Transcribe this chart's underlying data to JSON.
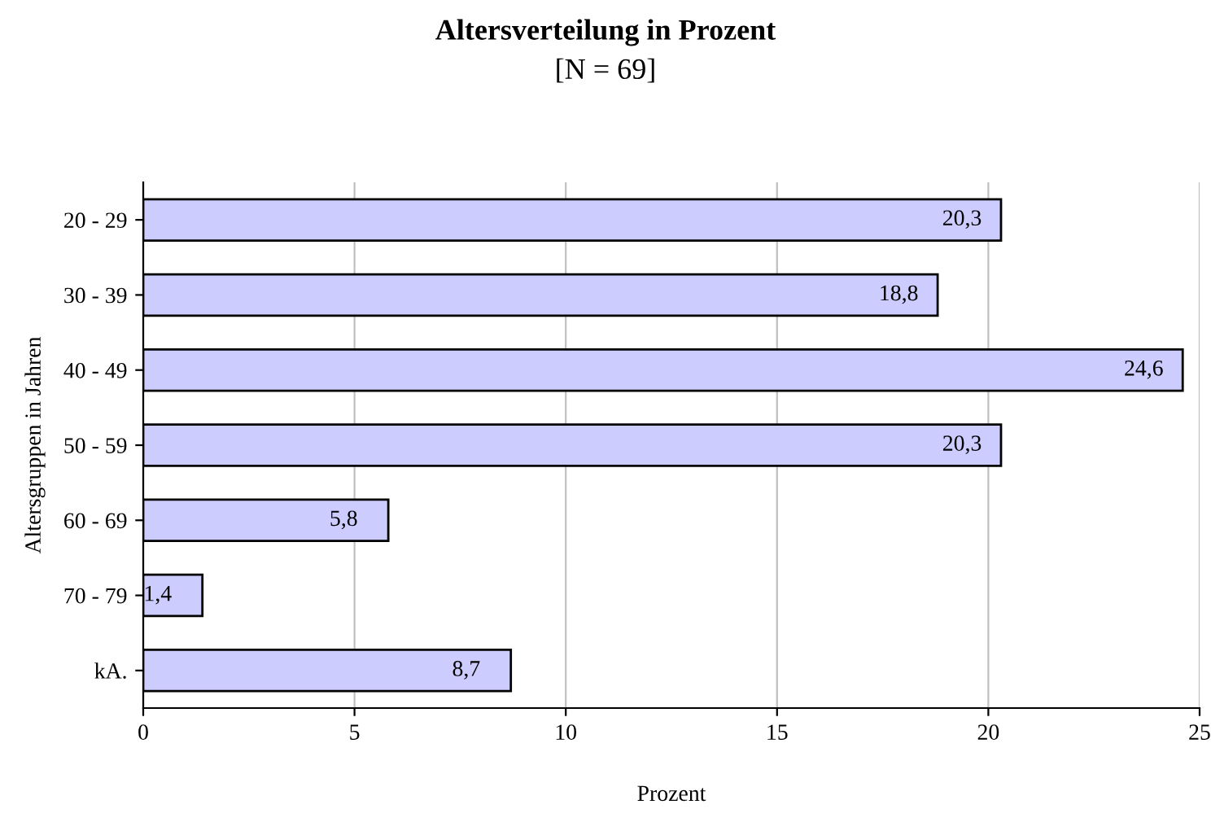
{
  "chart_data": {
    "type": "bar",
    "orientation": "horizontal",
    "title": "Altersverteilung in Prozent",
    "subtitle": "[N = 69]",
    "xlabel": "Prozent",
    "ylabel": "Altersgruppen in Jahren",
    "categories": [
      "20 - 29",
      "30 - 39",
      "40 - 49",
      "50 - 59",
      "60 - 69",
      "70 - 79",
      "kA."
    ],
    "values": [
      20.3,
      18.8,
      24.6,
      20.3,
      5.8,
      1.4,
      8.7
    ],
    "value_labels": [
      "20,3",
      "18,8",
      "24,6",
      "20,3",
      "5,8",
      "1,4",
      "8,7"
    ],
    "color": "#ccccff",
    "xlim": [
      0,
      25
    ],
    "xticks": [
      0,
      5,
      10,
      15,
      20,
      25
    ],
    "grid": "x",
    "legend": false
  }
}
